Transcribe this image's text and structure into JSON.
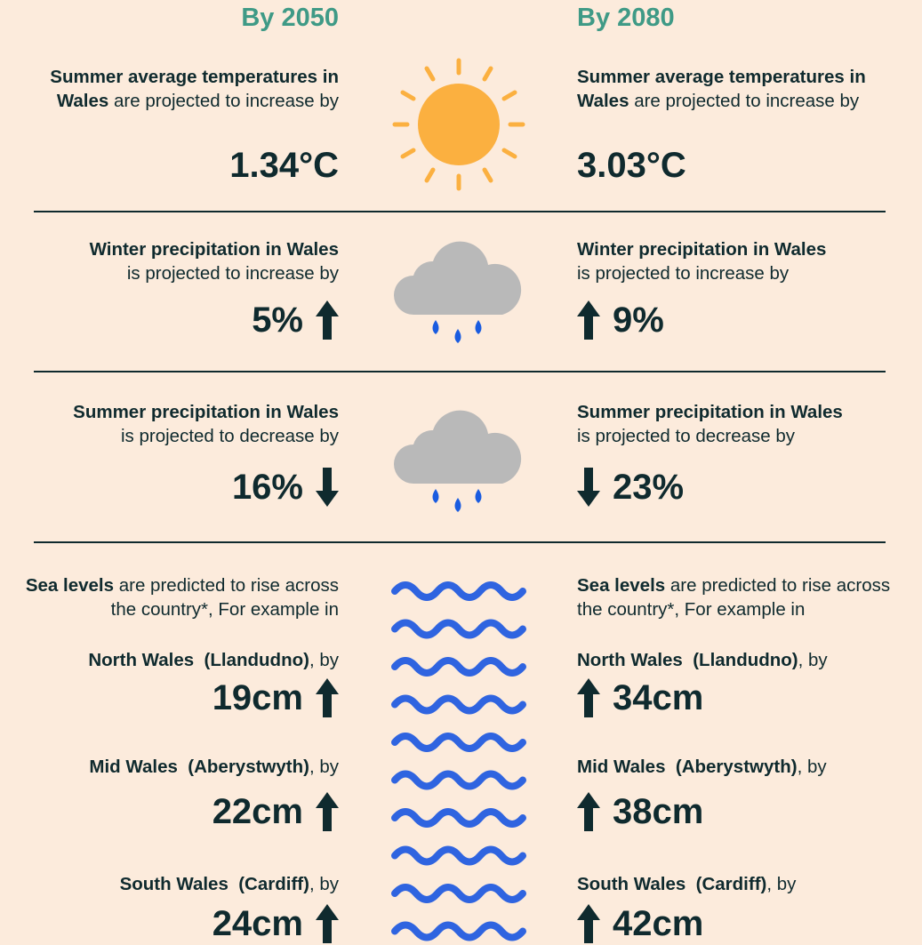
{
  "left": {
    "heading": "By 2050",
    "temperature": {
      "subject": "Summer average temperatures in Wales",
      "text": "are projected to increase by",
      "value": "1.34°C"
    },
    "winter": {
      "subject": "Winter precipitation in Wales",
      "text": "is projected to increase by",
      "value": "5%"
    },
    "summer": {
      "subject": "Summer precipitation in Wales",
      "text": "is projected to decrease by",
      "value": "16%"
    },
    "sea": {
      "subject": "Sea levels",
      "text": "are predicted to rise across the country*, For example in",
      "places": [
        {
          "name": "North Wales  (Llandudno)",
          "suffix": ", by",
          "value": "19cm"
        },
        {
          "name": "Mid Wales  (Aberystwyth)",
          "suffix": ", by",
          "value": "22cm"
        },
        {
          "name": "South Wales  (Cardiff)",
          "suffix": ", by",
          "value": "24cm"
        }
      ]
    }
  },
  "right": {
    "heading": "By 2080",
    "temperature": {
      "subject": "Summer average temperatures in Wales",
      "text": "are projected to increase by",
      "value": "3.03°C"
    },
    "winter": {
      "subject": "Winter precipitation in Wales",
      "text": "is projected to increase by",
      "value": "9%"
    },
    "summer": {
      "subject": "Summer precipitation in Wales",
      "text": "is projected to decrease by",
      "value": "23%"
    },
    "sea": {
      "subject": "Sea levels",
      "text": "are predicted to rise across the country*, For example in",
      "places": [
        {
          "name": "North Wales  (Llandudno)",
          "suffix": ", by",
          "value": "34cm"
        },
        {
          "name": "Mid Wales  (Aberystwyth)",
          "suffix": ", by",
          "value": "38cm"
        },
        {
          "name": "South Wales  (Cardiff)",
          "suffix": ", by",
          "value": "42cm"
        }
      ]
    }
  }
}
